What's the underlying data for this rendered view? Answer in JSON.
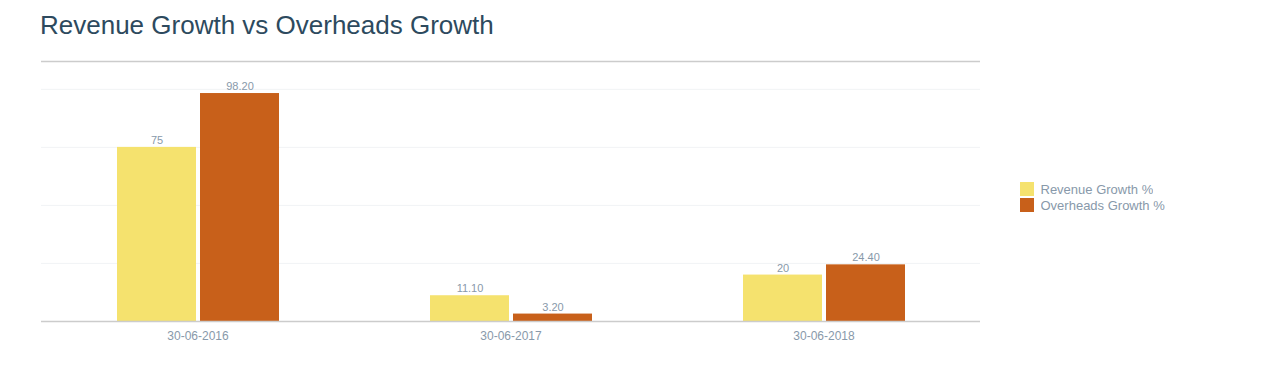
{
  "chart_data": {
    "type": "bar",
    "title": "Revenue Growth vs Overheads Growth",
    "categories": [
      "30-06-2016",
      "30-06-2017",
      "30-06-2018"
    ],
    "series": [
      {
        "name": "Revenue Growth %",
        "color": "#f5e26e",
        "values": [
          75,
          11.1,
          20
        ],
        "value_labels": [
          "75",
          "11.10",
          "20"
        ]
      },
      {
        "name": "Overheads Growth %",
        "color": "#c8601a",
        "values": [
          98.2,
          3.2,
          24.4
        ],
        "value_labels": [
          "98.20",
          "3.20",
          "24.40"
        ]
      }
    ],
    "ylim": [
      0,
      112
    ],
    "yticks": [
      0,
      25,
      50,
      75,
      100
    ],
    "grid": true,
    "legend": "right",
    "data_labels": true,
    "tick_labels": "x"
  }
}
